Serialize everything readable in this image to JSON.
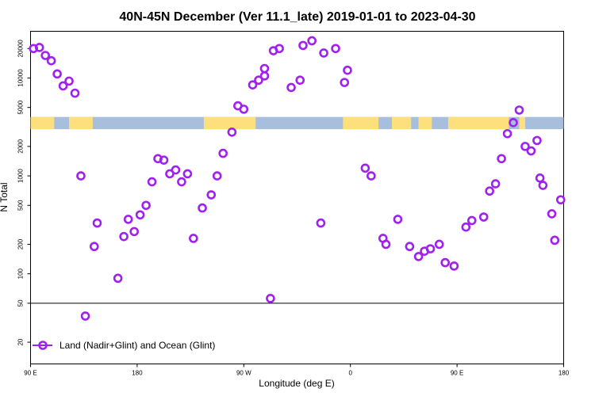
{
  "chart_data": {
    "type": "scatter",
    "title": "40N-45N December (Ver 11.1_late)   2019-01-01 to 2023-04-30",
    "xlabel": "Longitude (deg E)",
    "ylabel": "N Total",
    "xlim": [
      0,
      360
    ],
    "ylim_log": [
      12,
      30000
    ],
    "y_scale": "log",
    "x_tick_values": [
      0,
      72,
      144,
      216,
      288,
      360
    ],
    "x_tick_labels": [
      "90 E",
      "180",
      "90 W",
      "0",
      "90 E",
      "180"
    ],
    "y_ticks": [
      {
        "value": 20,
        "label": "20"
      },
      {
        "value": 50,
        "label": "50"
      },
      {
        "value": 100,
        "label": "100"
      },
      {
        "value": 200,
        "label": "200"
      },
      {
        "value": 500,
        "label": "500"
      },
      {
        "value": 1000,
        "label": "1000"
      },
      {
        "value": 2000,
        "label": "2000"
      },
      {
        "value": 5000,
        "label": "5000"
      },
      {
        "value": 10000,
        "label": "10000"
      },
      {
        "value": 20000,
        "label": "20000"
      }
    ],
    "reference_line_y": 50,
    "series": [
      {
        "name": "Land (Nadir+Glint) and Ocean (Glint)",
        "color": "#a020f0",
        "marker": "circle",
        "x": [
          2,
          6,
          10,
          14,
          18,
          22,
          26,
          30,
          34,
          37,
          43,
          45,
          59,
          63,
          66,
          70,
          74,
          78,
          82,
          86,
          90,
          94,
          98,
          102,
          106,
          110,
          116,
          122,
          126,
          130,
          136,
          140,
          144,
          150,
          154,
          158,
          158,
          164,
          168,
          176,
          182,
          184,
          190,
          198,
          206,
          212,
          214,
          226,
          230,
          238,
          240,
          248,
          256,
          262,
          266,
          270,
          276,
          280,
          286,
          294,
          298,
          306,
          310,
          314,
          318,
          322,
          326,
          330,
          334,
          338,
          342,
          344,
          346,
          352,
          354,
          358,
          162,
          196
        ],
        "y": [
          20000,
          20500,
          17000,
          15000,
          11000,
          8300,
          9300,
          7000,
          1000,
          37,
          190,
          330,
          90,
          240,
          360,
          270,
          400,
          500,
          870,
          1500,
          1450,
          1050,
          1150,
          870,
          1050,
          230,
          470,
          640,
          1000,
          1700,
          2800,
          5200,
          4800,
          8500,
          9500,
          10500,
          12500,
          19000,
          20000,
          8000,
          9500,
          21500,
          24000,
          18000,
          20000,
          9000,
          12000,
          1200,
          1000,
          230,
          200,
          360,
          190,
          150,
          170,
          180,
          200,
          130,
          120,
          300,
          350,
          380,
          700,
          830,
          1500,
          2700,
          3500,
          4700,
          2000,
          1800,
          2300,
          950,
          800,
          410,
          220,
          570,
          56,
          330
        ]
      }
    ],
    "legend": {
      "position": "bottom-left",
      "label": "Land (Nadir+Glint) and Ocean (Glint)"
    }
  }
}
